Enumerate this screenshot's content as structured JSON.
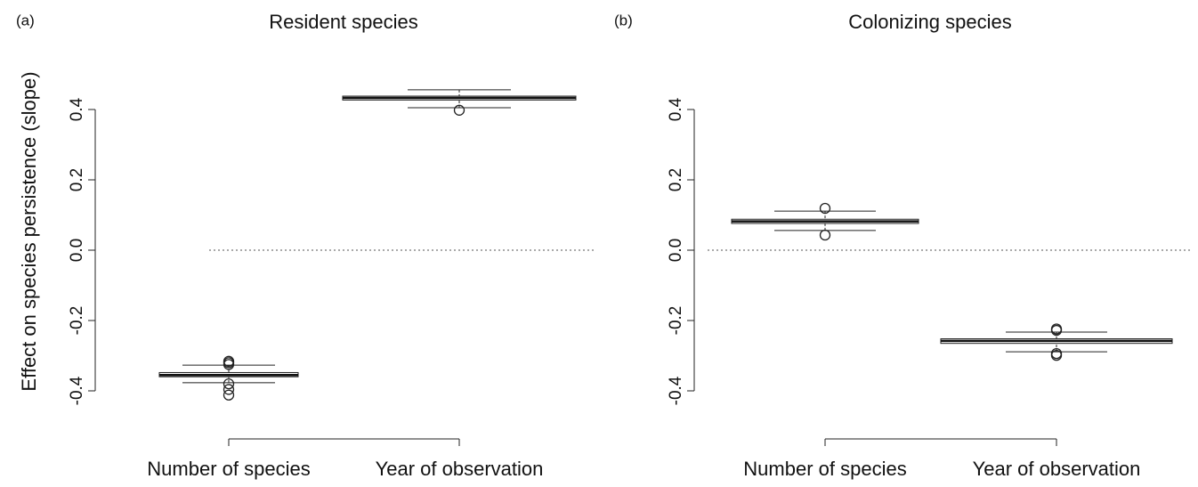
{
  "chart_data": [
    {
      "type": "box",
      "panel_label": "(a)",
      "title": "Resident species",
      "y_label": "Effect on species persistence (slope)",
      "categories": [
        "Number of species",
        "Year of observation"
      ],
      "boxes": [
        {
          "whislo": -0.377,
          "q1": -0.36,
          "med": -0.355,
          "q3": -0.348,
          "whishi": -0.327,
          "fliers": [
            -0.316,
            -0.32,
            -0.325,
            -0.38,
            -0.396,
            -0.412
          ]
        },
        {
          "whislo": 0.405,
          "q1": 0.427,
          "med": 0.433,
          "q3": 0.438,
          "whishi": 0.456,
          "fliers": [
            0.398
          ]
        }
      ],
      "hline": 0,
      "ylim": [
        -0.45,
        0.5
      ],
      "yticks": [
        -0.4,
        -0.2,
        {
          "value": 0,
          "label": "0.0"
        },
        0.2,
        0.4
      ]
    },
    {
      "type": "box",
      "panel_label": "(b)",
      "title": "Colonizing species",
      "categories": [
        "Number of species",
        "Year of observation"
      ],
      "boxes": [
        {
          "whislo": 0.056,
          "q1": 0.076,
          "med": 0.082,
          "q3": 0.088,
          "whishi": 0.111,
          "fliers": [
            0.119,
            0.043
          ]
        },
        {
          "whislo": -0.289,
          "q1": -0.265,
          "med": -0.258,
          "q3": -0.252,
          "whishi": -0.233,
          "fliers": [
            -0.224,
            -0.228,
            -0.294,
            -0.299
          ]
        }
      ],
      "hline": 0,
      "ylim": [
        -0.45,
        0.5
      ],
      "yticks": [
        -0.4,
        -0.2,
        {
          "value": 0,
          "label": "0.0"
        },
        0.2,
        0.4
      ]
    }
  ]
}
